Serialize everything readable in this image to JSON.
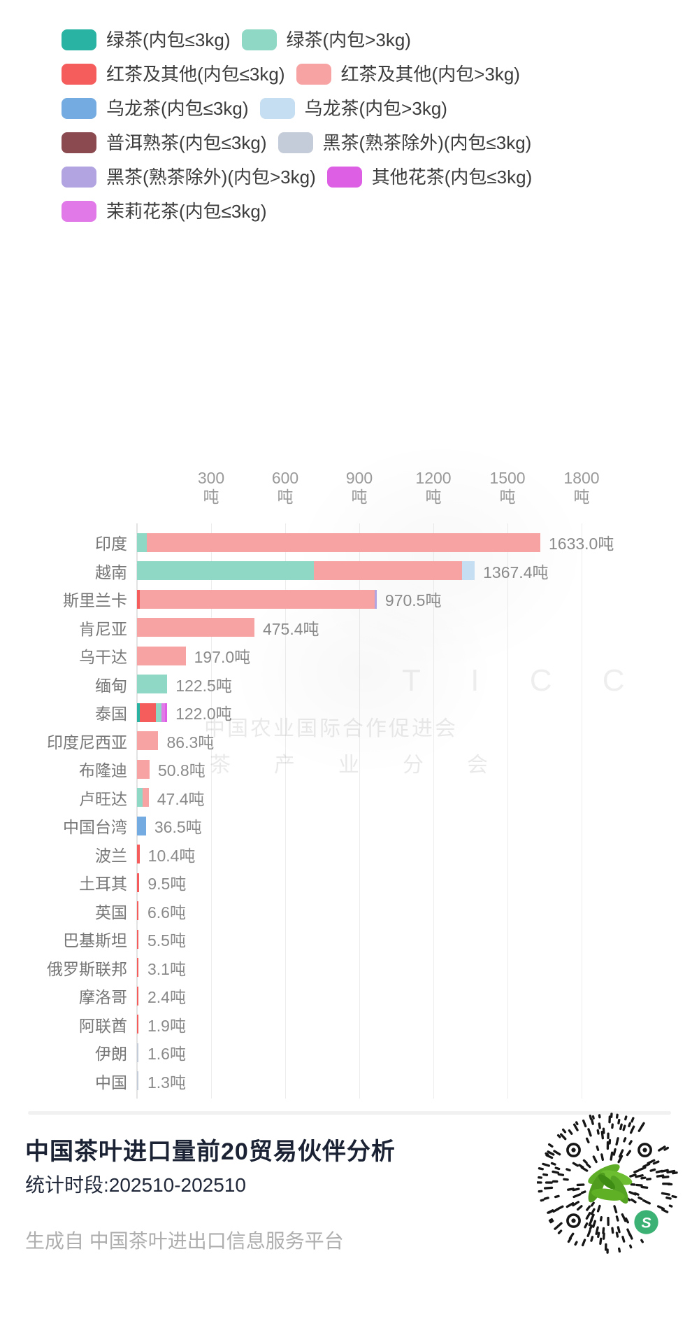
{
  "colors": {
    "green_small": "#29b3a2",
    "green_large": "#8fd8c5",
    "red_small": "#f55d5d",
    "red_large": "#f8a3a3",
    "oolong_small": "#74abe0",
    "oolong_large": "#c6def2",
    "puer_small": "#8a4a50",
    "dark_small": "#c5ccd9",
    "dark_large": "#b1a4e0",
    "other_flower_small": "#dd5fe4",
    "jasmine_small": "#e279e9"
  },
  "legend": {
    "rows": [
      [
        {
          "key": "green_small",
          "label": "绿茶(内包≤3kg)"
        },
        {
          "key": "green_large",
          "label": "绿茶(内包>3kg)"
        }
      ],
      [
        {
          "key": "red_small",
          "label": "红茶及其他(内包≤3kg)"
        },
        {
          "key": "red_large",
          "label": "红茶及其他(内包>3kg)"
        }
      ],
      [
        {
          "key": "oolong_small",
          "label": "乌龙茶(内包≤3kg)"
        },
        {
          "key": "oolong_large",
          "label": "乌龙茶(内包>3kg)"
        }
      ],
      [
        {
          "key": "puer_small",
          "label": "普洱熟茶(内包≤3kg)"
        },
        {
          "key": "dark_small",
          "label": "黑茶(熟茶除外)(内包≤3kg)"
        }
      ],
      [
        {
          "key": "dark_large",
          "label": "黑茶(熟茶除外)(内包>3kg)"
        },
        {
          "key": "other_flower_small",
          "label": "其他花茶(内包≤3kg)"
        }
      ],
      [
        {
          "key": "jasmine_small",
          "label": "茉莉花茶(内包≤3kg)"
        }
      ]
    ]
  },
  "chart_data": {
    "type": "bar",
    "orientation": "horizontal",
    "title": "中国茶叶进口量前20贸易伙伴分析",
    "unit": "吨",
    "x_tick_values": [
      300,
      600,
      900,
      1200,
      1500,
      1800
    ],
    "tick_unit": "吨",
    "xlim": [
      0,
      2150
    ],
    "grid": true,
    "legend_position": "top",
    "categories": [
      "印度",
      "越南",
      "斯里兰卡",
      "肯尼亚",
      "乌干达",
      "缅甸",
      "泰国",
      "印度尼西亚",
      "布隆迪",
      "卢旺达",
      "中国台湾",
      "波兰",
      "土耳其",
      "英国",
      "巴基斯坦",
      "俄罗斯联邦",
      "摩洛哥",
      "阿联酋",
      "伊朗",
      "中国"
    ],
    "totals": [
      1633.0,
      1367.4,
      970.5,
      475.4,
      197.0,
      122.5,
      122.0,
      86.3,
      50.8,
      47.4,
      36.5,
      10.4,
      9.5,
      6.6,
      5.5,
      3.1,
      2.4,
      1.9,
      1.6,
      1.3
    ],
    "bars": [
      {
        "label": "印度",
        "total": 1633.0,
        "value_label": "1633.0吨",
        "segments": [
          [
            "green_large",
            40.0
          ],
          [
            "red_large",
            1593.0
          ]
        ]
      },
      {
        "label": "越南",
        "total": 1367.4,
        "value_label": "1367.4吨",
        "segments": [
          [
            "green_large",
            715.0
          ],
          [
            "red_large",
            600.0
          ],
          [
            "oolong_large",
            52.4
          ]
        ]
      },
      {
        "label": "斯里兰卡",
        "total": 970.5,
        "value_label": "970.5吨",
        "segments": [
          [
            "red_small",
            12.0
          ],
          [
            "red_large",
            950.0
          ],
          [
            "dark_large",
            8.5
          ]
        ]
      },
      {
        "label": "肯尼亚",
        "total": 475.4,
        "value_label": "475.4吨",
        "segments": [
          [
            "red_large",
            475.4
          ]
        ]
      },
      {
        "label": "乌干达",
        "total": 197.0,
        "value_label": "197.0吨",
        "segments": [
          [
            "red_large",
            197.0
          ]
        ]
      },
      {
        "label": "缅甸",
        "total": 122.5,
        "value_label": "122.5吨",
        "segments": [
          [
            "green_large",
            122.5
          ]
        ]
      },
      {
        "label": "泰国",
        "total": 122.0,
        "value_label": "122.0吨",
        "segments": [
          [
            "green_small",
            10.0
          ],
          [
            "red_small",
            66.0
          ],
          [
            "green_large",
            24.0
          ],
          [
            "jasmine_small",
            12.0
          ],
          [
            "other_flower_small",
            10.0
          ]
        ]
      },
      {
        "label": "印度尼西亚",
        "total": 86.3,
        "value_label": "86.3吨",
        "segments": [
          [
            "red_large",
            86.3
          ]
        ]
      },
      {
        "label": "布隆迪",
        "total": 50.8,
        "value_label": "50.8吨",
        "segments": [
          [
            "red_large",
            50.8
          ]
        ]
      },
      {
        "label": "卢旺达",
        "total": 47.4,
        "value_label": "47.4吨",
        "segments": [
          [
            "green_large",
            24.0
          ],
          [
            "red_large",
            23.4
          ]
        ]
      },
      {
        "label": "中国台湾",
        "total": 36.5,
        "value_label": "36.5吨",
        "segments": [
          [
            "oolong_small",
            36.5
          ]
        ]
      },
      {
        "label": "波兰",
        "total": 10.4,
        "value_label": "10.4吨",
        "segments": [
          [
            "red_small",
            10.4
          ]
        ]
      },
      {
        "label": "土耳其",
        "total": 9.5,
        "value_label": "9.5吨",
        "segments": [
          [
            "red_small",
            9.5
          ]
        ]
      },
      {
        "label": "英国",
        "total": 6.6,
        "value_label": "6.6吨",
        "segments": [
          [
            "red_small",
            6.6
          ]
        ]
      },
      {
        "label": "巴基斯坦",
        "total": 5.5,
        "value_label": "5.5吨",
        "segments": [
          [
            "red_small",
            5.5
          ]
        ]
      },
      {
        "label": "俄罗斯联邦",
        "total": 3.1,
        "value_label": "3.1吨",
        "segments": [
          [
            "red_small",
            3.1
          ]
        ]
      },
      {
        "label": "摩洛哥",
        "total": 2.4,
        "value_label": "2.4吨",
        "segments": [
          [
            "red_small",
            2.4
          ]
        ]
      },
      {
        "label": "阿联酋",
        "total": 1.9,
        "value_label": "1.9吨",
        "segments": [
          [
            "red_small",
            1.9
          ]
        ]
      },
      {
        "label": "伊朗",
        "total": 1.6,
        "value_label": "1.6吨",
        "segments": [
          [
            "dark_small",
            1.6
          ]
        ]
      },
      {
        "label": "中国",
        "total": 1.3,
        "value_label": "1.3吨",
        "segments": [
          [
            "dark_small",
            1.3
          ]
        ]
      }
    ],
    "watermark": {
      "line1": "T I C C",
      "line2": "中国农业国际合作促进会",
      "line3": "茶产业分会"
    }
  },
  "footer": {
    "title": "中国茶叶进口量前20贸易伙伴分析",
    "subtitle": "统计时段:202510-202510",
    "source": "生成自 中国茶叶进出口信息服务平台",
    "qr_label": "小程序码"
  }
}
